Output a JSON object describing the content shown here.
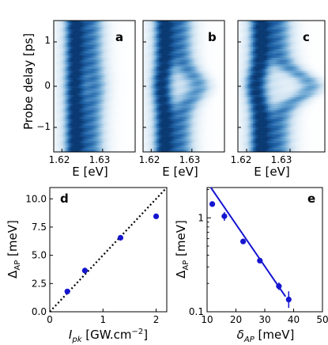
{
  "heatmaps": {
    "ylabel": "Probe delay [ps]",
    "y_ticks": [
      "1",
      "0",
      "−1"
    ],
    "y_tick_values": [
      1,
      0,
      -1
    ],
    "ylim": [
      -1.5,
      1.5
    ],
    "xlim": [
      1.618,
      1.638
    ],
    "x_tick_values": [
      1.62,
      1.63
    ],
    "panels": [
      {
        "label": "a",
        "x_ticks": [
          "1.62",
          "1.63"
        ],
        "xlabel": "E [eV]",
        "split_amplitude": 0.0008
      },
      {
        "label": "b",
        "x_ticks": [
          "1.62",
          "1.63"
        ],
        "xlabel": "E [eV]",
        "split_amplitude": 0.0045
      },
      {
        "label": "c",
        "x_ticks": [
          "1.62",
          "1.63"
        ],
        "xlabel": "E [eV]",
        "split_amplitude": 0.0075
      }
    ],
    "colormap": [
      "#ffffff",
      "#c9dff0",
      "#6aa5d2",
      "#1f63a8",
      "#0b3a73"
    ]
  },
  "chart_data": [
    {
      "type": "scatter",
      "panel": "d",
      "title": "",
      "xlabel_main": "I",
      "xlabel_sub": "pk",
      "xlabel_rest": " [GW.cm",
      "xlabel_sup": "−2",
      "xlabel_end": "]",
      "ylabel_main": "Δ",
      "ylabel_sub": "AP",
      "ylabel_rest": " [meV]",
      "xlim": [
        0,
        2.2
      ],
      "ylim": [
        0,
        11
      ],
      "x_ticks": [
        "0",
        "1",
        "2"
      ],
      "x_tick_values": [
        0,
        1,
        2
      ],
      "y_ticks": [
        "0.0",
        "2.5",
        "5.0",
        "7.5",
        "10.0"
      ],
      "y_tick_values": [
        0,
        2.5,
        5,
        7.5,
        10
      ],
      "series": [
        {
          "x": [
            0.33,
            0.66,
            1.33,
            2.0
          ],
          "y": [
            1.8,
            3.65,
            6.55,
            8.45
          ],
          "color": "#1515d0"
        }
      ],
      "reference_line": {
        "x": [
          0,
          2.2
        ],
        "y": [
          0,
          12.1
        ],
        "style": "dotted",
        "color": "#000000"
      }
    },
    {
      "type": "scatter",
      "panel": "e",
      "title": "",
      "xlabel_main": "δ",
      "xlabel_sub": "AP",
      "xlabel_rest": " [meV]",
      "ylabel_main": "Δ",
      "ylabel_sub": "AP",
      "ylabel_rest": " [meV]",
      "xlim": [
        10,
        50
      ],
      "ylim": [
        0.1,
        2.1
      ],
      "y_scale": "log",
      "x_ticks": [
        "10",
        "20",
        "30",
        "40",
        "50"
      ],
      "x_tick_values": [
        10,
        20,
        30,
        40,
        50
      ],
      "y_ticks": [
        "0.1",
        "1"
      ],
      "y_tick_values": [
        0.1,
        1
      ],
      "series": [
        {
          "x": [
            11.8,
            16.0,
            22.5,
            28.3,
            34.9,
            38.3
          ],
          "y": [
            1.4,
            1.04,
            0.56,
            0.35,
            0.187,
            0.135
          ],
          "yerr_low": [
            1.4,
            0.93,
            0.56,
            0.35,
            0.17,
            0.11
          ],
          "yerr_high": [
            1.4,
            1.15,
            0.56,
            0.35,
            0.205,
            0.165
          ],
          "color": "#1515d0"
        }
      ],
      "fit_line": {
        "x": [
          11.3,
          37.2
        ],
        "y": [
          2.1,
          0.145
        ],
        "color": "#1515d0"
      }
    }
  ]
}
